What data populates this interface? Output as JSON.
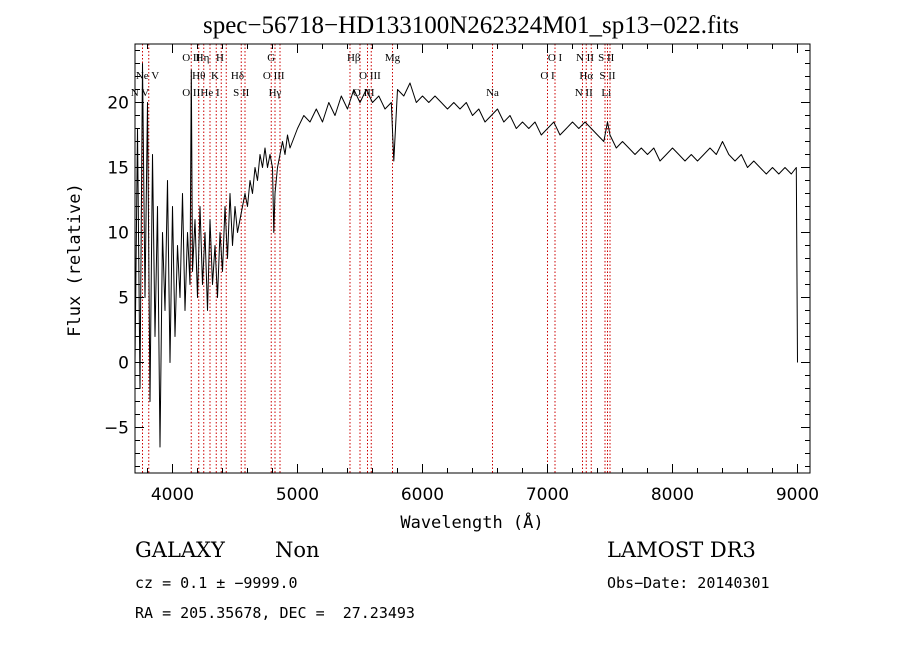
{
  "chart_data": {
    "type": "line",
    "title": "spec−56718−HD133100N262324M01_sp13−022.fits",
    "xlabel": "Wavelength (Å)",
    "ylabel": "Flux (relative)",
    "xlim": [
      3700,
      9100
    ],
    "ylim": [
      -8.5,
      24.5
    ],
    "xticks": [
      4000,
      5000,
      6000,
      7000,
      8000,
      9000
    ],
    "yticks": [
      -5,
      0,
      5,
      10,
      15,
      20
    ],
    "ytick_labels": [
      "−5",
      "0",
      "5",
      "10",
      "15",
      "20"
    ],
    "spectral_lines": [
      {
        "label": "Ne V",
        "wavelength": 3800,
        "row": 1
      },
      {
        "label": "N V",
        "wavelength": 3740,
        "row": 2
      },
      {
        "label": "O II",
        "wavelength": 4150,
        "row": 0
      },
      {
        "label": "Hη",
        "wavelength": 4240,
        "row": 0
      },
      {
        "label": "H",
        "wavelength": 4380,
        "row": 0
      },
      {
        "label": "Hθ",
        "wavelength": 4210,
        "row": 1
      },
      {
        "label": "K",
        "wavelength": 4340,
        "row": 1
      },
      {
        "label": "Hδ",
        "wavelength": 4520,
        "row": 1
      },
      {
        "label": "O II",
        "wavelength": 4150,
        "row": 2
      },
      {
        "label": "He I",
        "wavelength": 4300,
        "row": 2
      },
      {
        "label": "S II",
        "wavelength": 4550,
        "row": 2
      },
      {
        "label": "G",
        "wavelength": 4790,
        "row": 0
      },
      {
        "label": "O III",
        "wavelength": 4810,
        "row": 1
      },
      {
        "label": "Hγ",
        "wavelength": 4820,
        "row": 2
      },
      {
        "label": "Hβ",
        "wavelength": 5450,
        "row": 0
      },
      {
        "label": "Mg",
        "wavelength": 5760,
        "row": 0
      },
      {
        "label": "O III",
        "wavelength": 5580,
        "row": 1
      },
      {
        "label": "O III",
        "wavelength": 5530,
        "row": 2
      },
      {
        "label": "Na",
        "wavelength": 6560,
        "row": 2
      },
      {
        "label": "O I",
        "wavelength": 7060,
        "row": 0
      },
      {
        "label": "N II",
        "wavelength": 7300,
        "row": 0
      },
      {
        "label": "S II",
        "wavelength": 7470,
        "row": 0
      },
      {
        "label": "O I",
        "wavelength": 7000,
        "row": 1
      },
      {
        "label": "Hα",
        "wavelength": 7310,
        "row": 1
      },
      {
        "label": "S II",
        "wavelength": 7480,
        "row": 1
      },
      {
        "label": "N II",
        "wavelength": 7290,
        "row": 2
      },
      {
        "label": "Li",
        "wavelength": 7470,
        "row": 2
      }
    ],
    "marker_lines_x": [
      3760,
      3810,
      4150,
      4210,
      4250,
      4300,
      4350,
      4390,
      4430,
      4550,
      4580,
      4790,
      4820,
      4860,
      5420,
      5500,
      5560,
      5590,
      5760,
      6560,
      7000,
      7060,
      7280,
      7310,
      7350,
      7460,
      7480,
      7500
    ],
    "series": [
      {
        "x": [
          3700,
          3720,
          3740,
          3760,
          3780,
          3800,
          3820,
          3840,
          3860,
          3880,
          3900,
          3920,
          3940,
          3960,
          3980,
          4000,
          4020,
          4040,
          4060,
          4080,
          4100,
          4120,
          4140,
          4150,
          4160,
          4180,
          4200,
          4220,
          4240,
          4260,
          4280,
          4300,
          4320,
          4340,
          4360,
          4380,
          4400,
          4420,
          4440,
          4460,
          4480,
          4500,
          4520,
          4540,
          4560,
          4580,
          4600,
          4620,
          4640,
          4660,
          4680,
          4700,
          4720,
          4740,
          4760,
          4780,
          4800,
          4810,
          4820,
          4840,
          4860,
          4880,
          4900,
          4920,
          4940,
          4960,
          4980,
          5000,
          5050,
          5100,
          5150,
          5200,
          5250,
          5300,
          5350,
          5400,
          5450,
          5500,
          5550,
          5600,
          5650,
          5700,
          5750,
          5770,
          5800,
          5850,
          5900,
          5950,
          6000,
          6050,
          6100,
          6150,
          6200,
          6250,
          6300,
          6350,
          6400,
          6450,
          6500,
          6550,
          6600,
          6650,
          6700,
          6750,
          6800,
          6850,
          6900,
          6950,
          7000,
          7050,
          7100,
          7150,
          7200,
          7250,
          7300,
          7350,
          7400,
          7450,
          7480,
          7500,
          7550,
          7600,
          7650,
          7700,
          7750,
          7800,
          7850,
          7900,
          7950,
          8000,
          8050,
          8100,
          8150,
          8200,
          8250,
          8300,
          8350,
          8400,
          8450,
          8500,
          8550,
          8600,
          8650,
          8700,
          8750,
          8800,
          8850,
          8900,
          8950,
          8990,
          9000
        ],
        "y": [
          0,
          18,
          -2,
          23,
          5,
          20,
          -3,
          16,
          2,
          12,
          -6.5,
          10,
          4,
          14,
          0,
          12,
          2,
          9,
          5,
          13,
          4,
          10,
          6,
          22.5,
          7,
          11,
          5,
          12,
          6,
          10,
          4,
          11,
          6,
          9,
          5,
          10,
          7,
          12,
          8,
          13,
          9,
          12,
          10,
          11,
          12,
          13,
          12,
          14,
          13,
          15,
          14,
          16,
          15,
          16.5,
          15,
          16,
          15,
          10,
          13,
          15,
          16,
          17,
          16,
          17.5,
          16.5,
          17,
          17.5,
          18,
          19,
          18.5,
          19.5,
          18.5,
          20,
          19,
          20.5,
          19.5,
          21,
          20,
          21,
          20,
          20.5,
          19.5,
          20,
          15.5,
          21,
          20.5,
          21.5,
          20,
          20.5,
          20,
          20.5,
          20,
          19.5,
          20,
          19.5,
          20,
          19,
          19.5,
          18.5,
          19,
          19.5,
          18.5,
          19,
          18,
          18.5,
          18,
          18.5,
          17.5,
          18,
          18.5,
          17.5,
          18,
          18.5,
          18,
          18.5,
          18,
          17.5,
          17,
          18.5,
          17.5,
          16.5,
          17,
          16.5,
          16,
          16.5,
          16,
          16.5,
          15.5,
          16,
          16.5,
          16,
          15.5,
          16,
          15.5,
          16,
          16.5,
          16,
          17,
          16,
          15.5,
          16,
          15,
          15.5,
          15,
          14.5,
          15,
          14.5,
          15,
          14.5,
          15,
          0
        ]
      }
    ]
  },
  "info": {
    "object_type": "GALAXY",
    "subclass": "Non",
    "survey": "LAMOST DR3",
    "cz": "cz = 0.1 ± −9999.0",
    "obs_date": "Obs−Date: 20140301",
    "radec": "RA = 205.35678, DEC =  27.23493"
  }
}
